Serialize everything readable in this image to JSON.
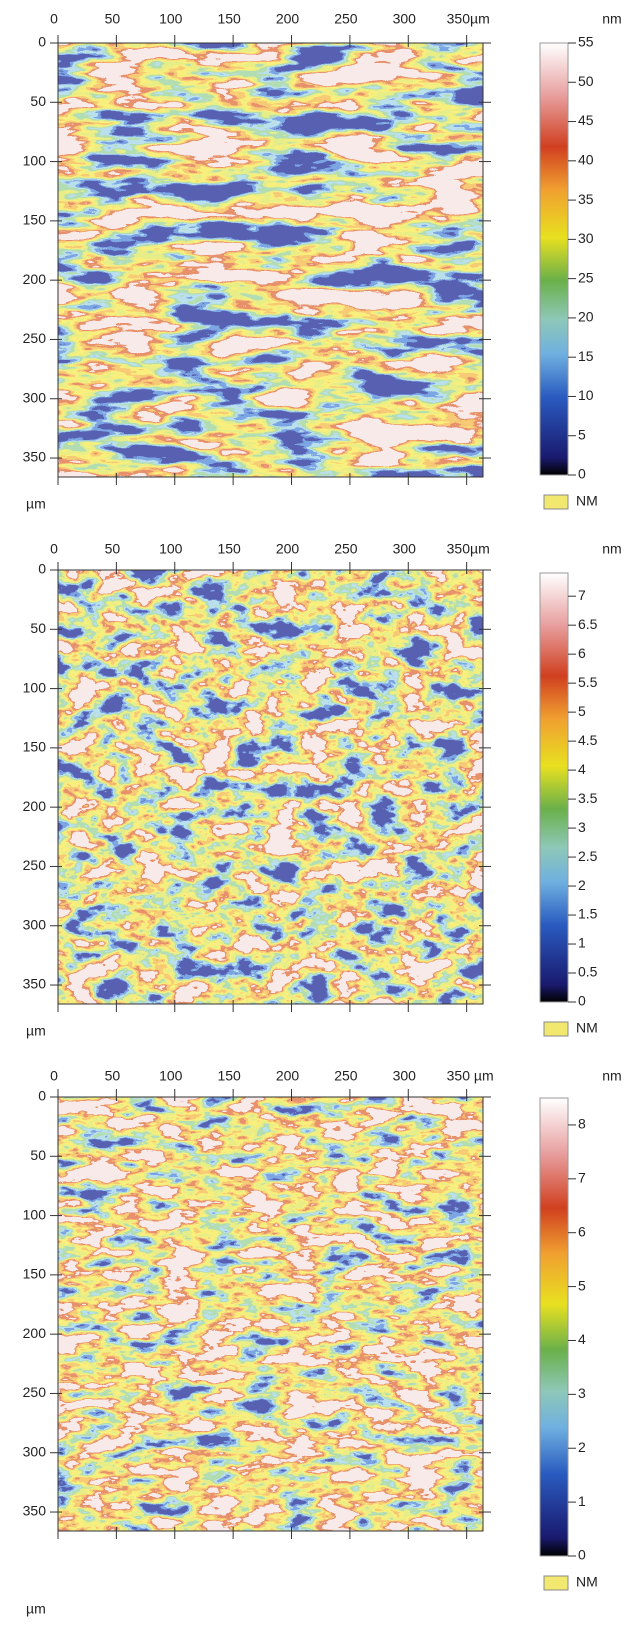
{
  "chart_data": [
    {
      "type": "heatmap",
      "x_unit": "µm",
      "y_unit": "µm",
      "colorbar_unit": "nm",
      "legend": "NM",
      "xlim": [
        0,
        364
      ],
      "ylim": [
        0,
        366
      ],
      "xticks": [
        0,
        50,
        100,
        150,
        200,
        250,
        300,
        {
          "value": 350,
          "label": "350µm"
        }
      ],
      "yticks": [
        0,
        50,
        100,
        150,
        200,
        250,
        300,
        350
      ],
      "clim": [
        0,
        55
      ],
      "cticks": [
        0,
        5,
        10,
        15,
        20,
        25,
        30,
        35,
        40,
        45,
        50,
        55
      ]
    },
    {
      "type": "heatmap",
      "x_unit": "µm",
      "y_unit": "µm",
      "colorbar_unit": "nm",
      "legend": "NM",
      "xlim": [
        0,
        364
      ],
      "ylim": [
        0,
        366
      ],
      "xticks": [
        0,
        50,
        100,
        150,
        200,
        250,
        300,
        {
          "value": 350,
          "label": "350µm"
        }
      ],
      "yticks": [
        0,
        50,
        100,
        150,
        200,
        250,
        300,
        350
      ],
      "clim": [
        0,
        7.4
      ],
      "cticks": [
        0,
        0.5,
        1,
        1.5,
        2,
        2.5,
        3,
        3.5,
        4,
        4.5,
        5,
        5.5,
        6,
        6.5,
        7
      ]
    },
    {
      "type": "heatmap",
      "x_unit": "µm",
      "y_unit": "µm",
      "colorbar_unit": "nm",
      "legend": "NM",
      "xlim": [
        0,
        364
      ],
      "ylim": [
        0,
        366
      ],
      "xticks": [
        0,
        50,
        100,
        150,
        200,
        250,
        300,
        {
          "value": 350,
          "label": "350 µm"
        }
      ],
      "yticks": [
        0,
        50,
        100,
        150,
        200,
        250,
        300,
        350
      ],
      "clim": [
        0,
        8.5
      ],
      "cticks": [
        0,
        1,
        2,
        3,
        4,
        5,
        6,
        7,
        8
      ]
    }
  ]
}
